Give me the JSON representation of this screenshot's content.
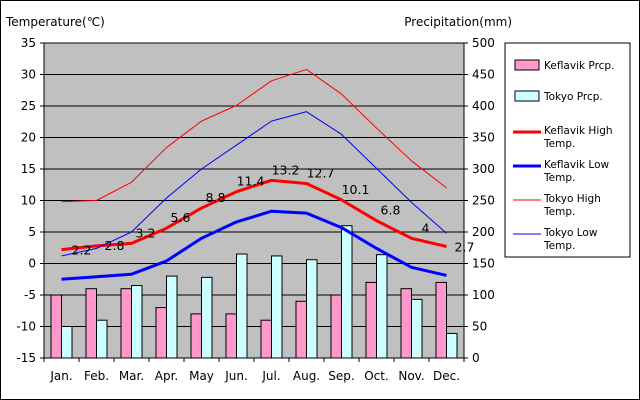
{
  "chart_data": {
    "type": "bar+line",
    "title": "",
    "ylabel_left": "Temperature(℃)",
    "ylabel_right": "Precipitation(mm)",
    "categories": [
      "Jan.",
      "Feb.",
      "Mar.",
      "Apr.",
      "May",
      "Jun.",
      "Jul.",
      "Aug.",
      "Sep.",
      "Oct.",
      "Nov.",
      "Dec."
    ],
    "ylim_left": [
      -15,
      35
    ],
    "yticks_left": [
      -15,
      -10,
      -5,
      0,
      5,
      10,
      15,
      20,
      25,
      30,
      35
    ],
    "ylim_right": [
      0,
      500
    ],
    "yticks_right": [
      0,
      50,
      100,
      150,
      200,
      250,
      300,
      350,
      400,
      450,
      500
    ],
    "grid": true,
    "legend_position": "right",
    "bar_series": [
      {
        "name": "Keflavik Prcp.",
        "color": "#ff99cc",
        "values": [
          100,
          110,
          110,
          80,
          70,
          70,
          60,
          90,
          100,
          120,
          110,
          120
        ]
      },
      {
        "name": "Tokyo Prcp.",
        "color": "#ccffff",
        "values": [
          50,
          60,
          115,
          130,
          128,
          165,
          162,
          156,
          210,
          164,
          93,
          39
        ]
      }
    ],
    "line_series": [
      {
        "name": "Keflavik High Temp.",
        "color": "#ff0000",
        "width": 3,
        "values": [
          2.2,
          2.8,
          3.2,
          5.6,
          8.8,
          11.4,
          13.2,
          12.7,
          10.1,
          6.8,
          4,
          2.7
        ]
      },
      {
        "name": "Keflavik Low Temp.",
        "color": "#0000ff",
        "width": 3,
        "values": [
          -2.5,
          -2.1,
          -1.7,
          0.4,
          4,
          6.6,
          8.3,
          8,
          5.7,
          2.4,
          -0.6,
          -1.9
        ]
      },
      {
        "name": "Tokyo High Temp.",
        "color": "#ff0000",
        "width": 1,
        "values": [
          9.8,
          10,
          12.9,
          18.4,
          22.6,
          25.1,
          29,
          30.8,
          26.9,
          21.5,
          16.3,
          12
        ]
      },
      {
        "name": "Tokyo Low Temp.",
        "color": "#0000ff",
        "width": 1,
        "values": [
          1.2,
          2.4,
          5,
          10.4,
          15,
          18.8,
          22.6,
          24.1,
          20.5,
          15.1,
          9.7,
          4.8
        ]
      }
    ],
    "data_labels": [
      "2.2",
      "2.8",
      "3.2",
      "5.6",
      "8.8",
      "11.4",
      "13.2",
      "12.7",
      "10.1",
      "6.8",
      "4",
      "2.7"
    ],
    "legend": [
      {
        "label": "Keflavik Prcp.",
        "kind": "box",
        "color": "#ff99cc"
      },
      {
        "label": "Tokyo Prcp.",
        "kind": "box",
        "color": "#ccffff"
      },
      {
        "label": "Keflavik High Temp.",
        "kind": "line",
        "color": "#ff0000",
        "width": 3
      },
      {
        "label": "Keflavik Low Temp.",
        "kind": "line",
        "color": "#0000ff",
        "width": 3
      },
      {
        "label": "Tokyo High Temp.",
        "kind": "line",
        "color": "#ff0000",
        "width": 1
      },
      {
        "label": "Tokyo Low Temp.",
        "kind": "line",
        "color": "#0000ff",
        "width": 1
      }
    ]
  }
}
